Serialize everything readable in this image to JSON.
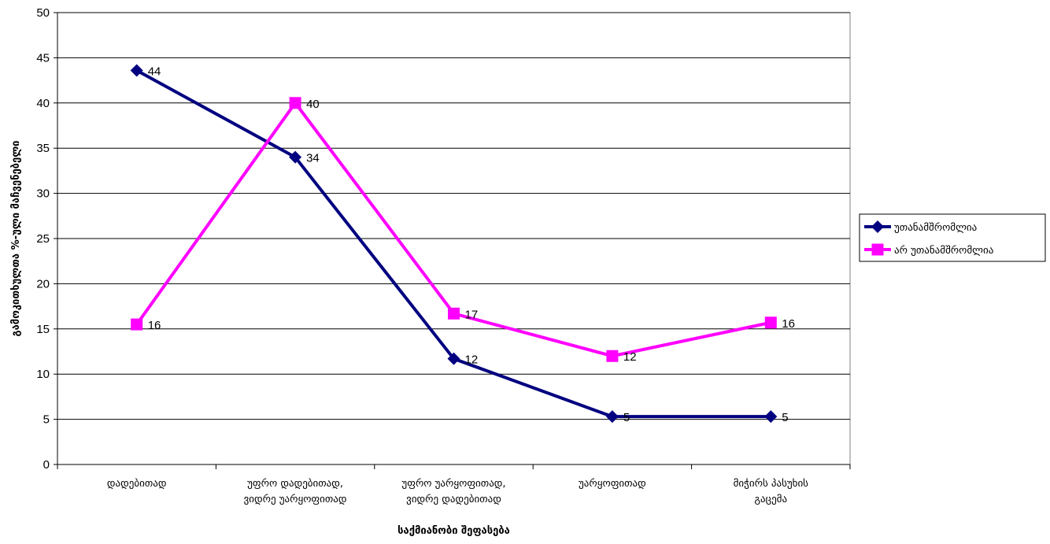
{
  "chart_data": {
    "type": "line",
    "title": "",
    "xlabel": "საქმიანობი შეფასება",
    "ylabel": "გამოკითხულთა %-ული მაჩვენებელი",
    "ylim": [
      0,
      50
    ],
    "yticks": [
      0,
      5,
      10,
      15,
      20,
      25,
      30,
      35,
      40,
      45,
      50
    ],
    "grid": "horizontal",
    "legend_position": "right",
    "categories": [
      [
        "დადებითად"
      ],
      [
        "უფრო დადებითად,",
        "ვიდრე უარყოფითად"
      ],
      [
        "უფრო უარყოფითად,",
        "ვიდრე დადებითად"
      ],
      [
        "უარყოფითად"
      ],
      [
        "მიჭირს პასუხის",
        "გაცემა"
      ]
    ],
    "series": [
      {
        "name": "უთანამშრომლია",
        "color": "#000080",
        "marker": "diamond",
        "values": [
          43.6,
          34.0,
          11.7,
          5.3,
          5.3
        ],
        "labels": [
          "44",
          "34",
          "12",
          "5",
          "5"
        ]
      },
      {
        "name": "არ უთანამშრომლია",
        "color": "#FF00FF",
        "marker": "square",
        "values": [
          15.5,
          40.0,
          16.7,
          12.0,
          15.7
        ],
        "labels": [
          "16",
          "40",
          "17",
          "12",
          "16"
        ]
      }
    ]
  }
}
